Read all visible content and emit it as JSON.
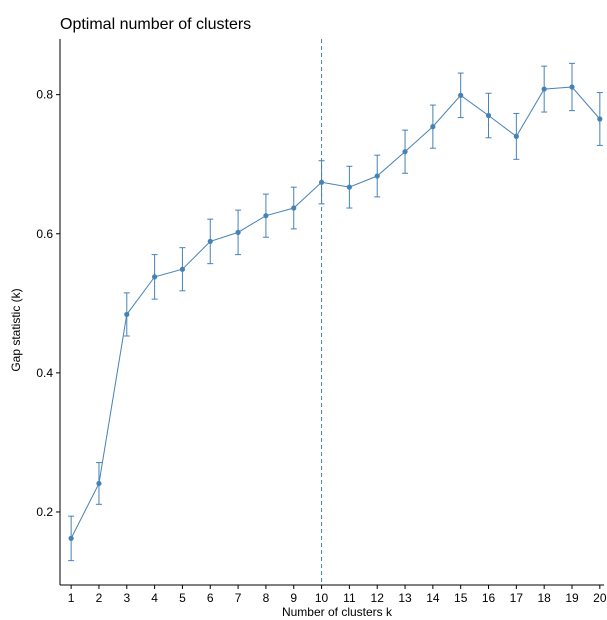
{
  "chart_data": {
    "type": "line",
    "title": "Optimal number of clusters",
    "xlabel": "Number of clusters k",
    "ylabel": "Gap statistic (k)",
    "x": [
      1,
      2,
      3,
      4,
      5,
      6,
      7,
      8,
      9,
      10,
      11,
      12,
      13,
      14,
      15,
      16,
      17,
      18,
      19,
      20
    ],
    "x_tick_labels": [
      "1",
      "2",
      "3",
      "4",
      "5",
      "6",
      "7",
      "8",
      "9",
      "10",
      "11",
      "12",
      "13",
      "14",
      "15",
      "16",
      "17",
      "18",
      "19",
      "20"
    ],
    "y": [
      0.162,
      0.241,
      0.484,
      0.538,
      0.549,
      0.589,
      0.602,
      0.626,
      0.637,
      0.674,
      0.667,
      0.683,
      0.718,
      0.754,
      0.799,
      0.77,
      0.74,
      0.808,
      0.811,
      0.765
    ],
    "y_se": [
      0.032,
      0.03,
      0.031,
      0.032,
      0.031,
      0.032,
      0.032,
      0.031,
      0.03,
      0.031,
      0.03,
      0.03,
      0.031,
      0.031,
      0.032,
      0.032,
      0.033,
      0.033,
      0.034,
      0.038
    ],
    "y_ticks": [
      0.2,
      0.4,
      0.6,
      0.8
    ],
    "y_tick_labels": [
      "0.2",
      "0.4",
      "0.6",
      "0.8"
    ],
    "xlim": [
      0.6,
      20.15
    ],
    "ylim": [
      0.095,
      0.88
    ],
    "optimal_k": 10,
    "grid": false,
    "colors": {
      "series": "#4682b4",
      "axis": "#000000"
    }
  }
}
